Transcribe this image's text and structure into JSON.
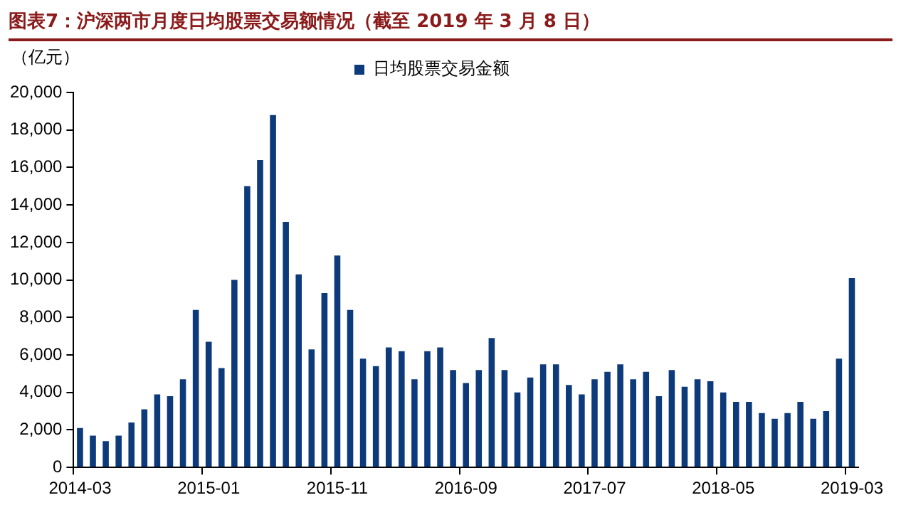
{
  "chart_data": {
    "type": "bar",
    "title": "图表7：沪深两市月度日均股票交易额情况（截至 2019 年 3 月 8 日）",
    "ylabel": "（亿元）",
    "categories": [
      "2014-03",
      null,
      null,
      null,
      null,
      null,
      null,
      null,
      null,
      null,
      "2015-01",
      null,
      null,
      null,
      null,
      null,
      null,
      null,
      null,
      null,
      "2015-11",
      null,
      null,
      null,
      null,
      null,
      null,
      null,
      null,
      null,
      "2016-09",
      null,
      null,
      null,
      null,
      null,
      null,
      null,
      null,
      null,
      "2017-07",
      null,
      null,
      null,
      null,
      null,
      null,
      null,
      null,
      null,
      "2018-05",
      null,
      null,
      null,
      null,
      null,
      null,
      null,
      null,
      null,
      "2019-03"
    ],
    "series": [
      {
        "name": "日均股票交易金额",
        "color": "#0d3a7a",
        "values": [
          2100,
          1700,
          1400,
          1700,
          2400,
          3100,
          3900,
          3800,
          4700,
          8400,
          6700,
          5300,
          10000,
          15000,
          16400,
          18800,
          13100,
          10300,
          6300,
          9300,
          11300,
          8400,
          5800,
          5400,
          6400,
          6200,
          4700,
          6200,
          6400,
          5200,
          4500,
          5200,
          6900,
          5200,
          4000,
          4800,
          5500,
          5500,
          4400,
          3900,
          4700,
          5100,
          5500,
          4700,
          5100,
          3800,
          5200,
          4300,
          4700,
          4600,
          4000,
          3500,
          3500,
          2900,
          2600,
          2900,
          3500,
          2600,
          3000,
          5800,
          10100
        ]
      }
    ],
    "ylim": [
      0,
      20000
    ],
    "yticks": [
      0,
      {
        "value": 2000,
        "label": "2,000"
      },
      {
        "value": 4000,
        "label": "4,000"
      },
      {
        "value": 6000,
        "label": "6,000"
      },
      {
        "value": 8000,
        "label": "8,000"
      },
      {
        "value": 10000,
        "label": "10,000"
      },
      {
        "value": 12000,
        "label": "12,000"
      },
      {
        "value": 14000,
        "label": "14,000"
      },
      {
        "value": 16000,
        "label": "16,000"
      },
      {
        "value": 18000,
        "label": "18,000"
      },
      {
        "value": 20000,
        "label": "20,000"
      }
    ],
    "grid": false,
    "legend": "top"
  }
}
